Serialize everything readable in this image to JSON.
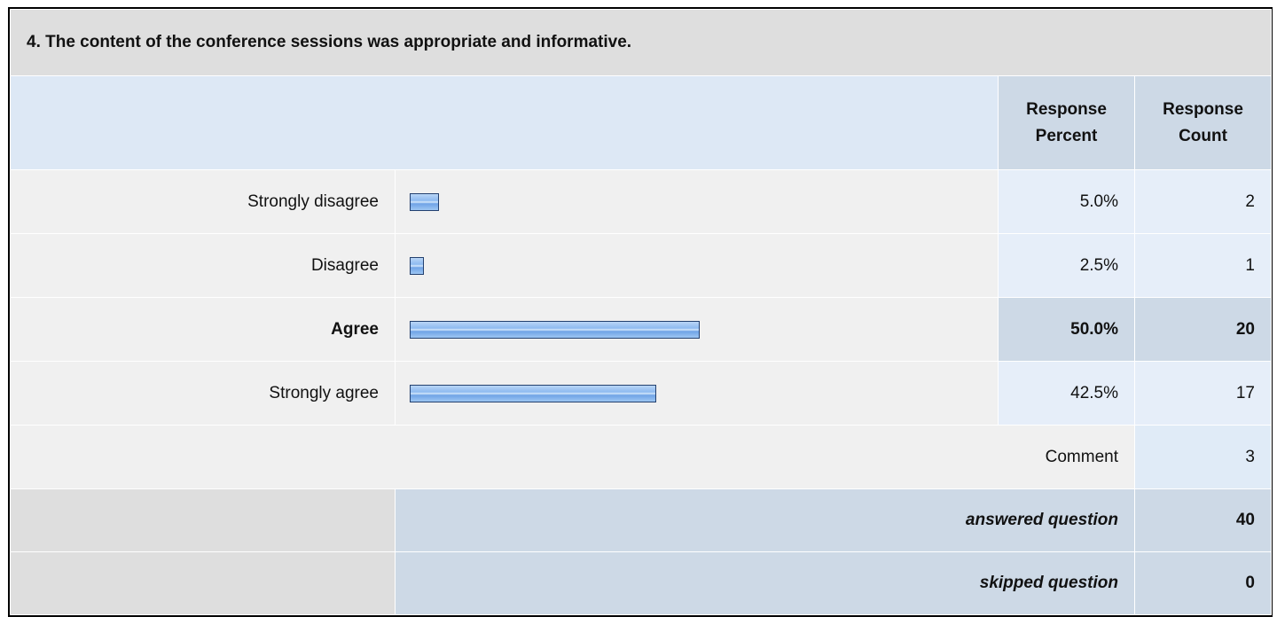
{
  "title": "4. The content of the conference sessions was appropriate and informative.",
  "headers": {
    "percent": "Response Percent",
    "count": "Response Count"
  },
  "rows": [
    {
      "label": "Strongly disagree",
      "percent": 5,
      "percent_label": "5.0%",
      "count": 2
    },
    {
      "label": "Disagree",
      "percent": 2.5,
      "percent_label": "2.5%",
      "count": 1
    },
    {
      "label": "Agree",
      "percent": 50,
      "percent_label": "50.0%",
      "count": 20,
      "highlighted": true
    },
    {
      "label": "Strongly agree",
      "percent": 42.5,
      "percent_label": "42.5%",
      "count": 17
    }
  ],
  "comment": {
    "label": "Comment",
    "count": 3
  },
  "answered": {
    "label": "answered question",
    "count": 40
  },
  "skipped": {
    "label": "skipped question",
    "count": 0
  }
}
